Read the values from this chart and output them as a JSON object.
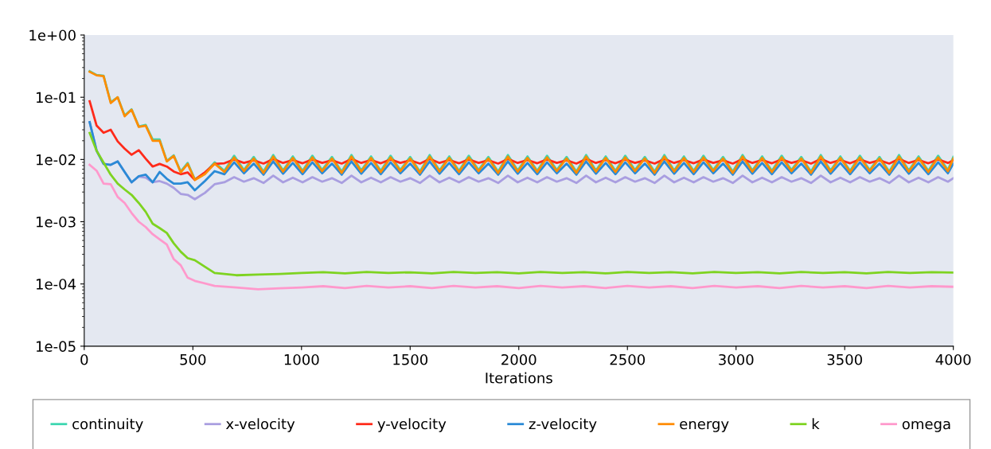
{
  "chart_data": {
    "type": "line",
    "xlabel": "Iterations",
    "log": "y",
    "legend": "bottom",
    "grid": false,
    "marker": "none",
    "line_style": "solid",
    "xlim": [
      0,
      4000
    ],
    "xticks": [
      0,
      500,
      1000,
      1500,
      2000,
      2500,
      3000,
      3500,
      4000
    ],
    "ylim": [
      1e-05,
      1
    ],
    "yticks": [
      {
        "value": 1e-05,
        "label": "1e-05"
      },
      {
        "value": 0.0001,
        "label": "1e-04"
      },
      {
        "value": 0.001,
        "label": "1e-03"
      },
      {
        "value": 0.01,
        "label": "1e-02"
      },
      {
        "value": 0.1,
        "label": "1e-01"
      },
      {
        "value": 1,
        "label": "1e+00"
      }
    ],
    "x": [
      25,
      57,
      89,
      122,
      154,
      186,
      218,
      251,
      283,
      315,
      347,
      380,
      412,
      444,
      476,
      509,
      555,
      600,
      645,
      690,
      735,
      780,
      825,
      870,
      915,
      960,
      1005,
      1050,
      1095,
      1140,
      1185,
      1230,
      1275,
      1320,
      1365,
      1410,
      1455,
      1500,
      1545,
      1590,
      1635,
      1680,
      1725,
      1770,
      1815,
      1860,
      1905,
      1950,
      1995,
      2040,
      2085,
      2130,
      2175,
      2220,
      2265,
      2310,
      2355,
      2400,
      2445,
      2490,
      2535,
      2580,
      2625,
      2670,
      2715,
      2760,
      2805,
      2850,
      2895,
      2940,
      2985,
      3030,
      3075,
      3120,
      3165,
      3210,
      3255,
      3300,
      3345,
      3390,
      3435,
      3480,
      3525,
      3570,
      3615,
      3660,
      3705,
      3750,
      3795,
      3840,
      3885,
      3930,
      3975,
      4000
    ],
    "series": [
      {
        "name": "continuity",
        "color": "#3dd6b0",
        "values": [
          0.262,
          0.228,
          0.222,
          0.083,
          0.1,
          0.051,
          0.064,
          0.034,
          0.036,
          0.021,
          0.021,
          0.0095,
          0.0117,
          0.0064,
          0.0088,
          0.0048,
          0.006,
          0.009,
          0.0066,
          0.0115,
          0.0068,
          0.011,
          0.0064,
          0.0118,
          0.0067,
          0.0112,
          0.0066,
          0.0115,
          0.0068,
          0.011,
          0.0064,
          0.0118,
          0.0067,
          0.0112,
          0.0066,
          0.0115,
          0.0068,
          0.011,
          0.0064,
          0.0118,
          0.0067,
          0.0112,
          0.0066,
          0.0115,
          0.0068,
          0.011,
          0.0064,
          0.0118,
          0.0067,
          0.0112,
          0.0066,
          0.0115,
          0.0068,
          0.011,
          0.0064,
          0.0118,
          0.0067,
          0.0112,
          0.0066,
          0.0115,
          0.0068,
          0.011,
          0.0064,
          0.0118,
          0.0067,
          0.0112,
          0.0066,
          0.0115,
          0.0068,
          0.011,
          0.0064,
          0.0118,
          0.0067,
          0.0112,
          0.0066,
          0.0115,
          0.0068,
          0.011,
          0.0064,
          0.0118,
          0.0067,
          0.0112,
          0.0066,
          0.0115,
          0.0068,
          0.011,
          0.0064,
          0.0118,
          0.0067,
          0.0112,
          0.0066,
          0.0115,
          0.0068,
          0.011
        ]
      },
      {
        "name": "x-velocity",
        "color": "#a99ee0",
        "values": [
          0.0398,
          0.0138,
          0.0085,
          0.0082,
          0.0093,
          0.0063,
          0.0043,
          0.0053,
          0.0051,
          0.0043,
          0.0045,
          0.0041,
          0.0035,
          0.0028,
          0.0027,
          0.0023,
          0.0029,
          0.004,
          0.0043,
          0.0052,
          0.0044,
          0.005,
          0.0042,
          0.0055,
          0.0043,
          0.0051,
          0.0043,
          0.0052,
          0.0044,
          0.005,
          0.0042,
          0.0055,
          0.0043,
          0.0051,
          0.0043,
          0.0052,
          0.0044,
          0.005,
          0.0042,
          0.0055,
          0.0043,
          0.0051,
          0.0043,
          0.0052,
          0.0044,
          0.005,
          0.0042,
          0.0055,
          0.0043,
          0.0051,
          0.0043,
          0.0052,
          0.0044,
          0.005,
          0.0042,
          0.0055,
          0.0043,
          0.0051,
          0.0043,
          0.0052,
          0.0044,
          0.005,
          0.0042,
          0.0055,
          0.0043,
          0.0051,
          0.0043,
          0.0052,
          0.0044,
          0.005,
          0.0042,
          0.0055,
          0.0043,
          0.0051,
          0.0043,
          0.0052,
          0.0044,
          0.005,
          0.0042,
          0.0055,
          0.0043,
          0.0051,
          0.0043,
          0.0052,
          0.0044,
          0.005,
          0.0042,
          0.0055,
          0.0043,
          0.0051,
          0.0043,
          0.0052,
          0.0044,
          0.005
        ]
      },
      {
        "name": "y-velocity",
        "color": "#ff2a1a",
        "values": [
          0.0863,
          0.035,
          0.0269,
          0.03,
          0.0195,
          0.0149,
          0.0119,
          0.0141,
          0.0103,
          0.0077,
          0.0085,
          0.0077,
          0.0064,
          0.0058,
          0.0062,
          0.0047,
          0.0062,
          0.0085,
          0.0087,
          0.01,
          0.0088,
          0.0097,
          0.0086,
          0.0102,
          0.0088,
          0.0098,
          0.0087,
          0.01,
          0.0088,
          0.0097,
          0.0086,
          0.0102,
          0.0088,
          0.0098,
          0.0087,
          0.01,
          0.0088,
          0.0097,
          0.0086,
          0.0102,
          0.0088,
          0.0098,
          0.0087,
          0.01,
          0.0088,
          0.0097,
          0.0086,
          0.0102,
          0.0088,
          0.0098,
          0.0087,
          0.01,
          0.0088,
          0.0097,
          0.0086,
          0.0102,
          0.0088,
          0.0098,
          0.0087,
          0.01,
          0.0088,
          0.0097,
          0.0086,
          0.0102,
          0.0088,
          0.0098,
          0.0087,
          0.01,
          0.0088,
          0.0097,
          0.0086,
          0.0102,
          0.0088,
          0.0098,
          0.0087,
          0.01,
          0.0088,
          0.0097,
          0.0086,
          0.0102,
          0.0088,
          0.0098,
          0.0087,
          0.01,
          0.0088,
          0.0097,
          0.0086,
          0.0102,
          0.0088,
          0.0098,
          0.0087,
          0.01,
          0.0088,
          0.0097
        ]
      },
      {
        "name": "z-velocity",
        "color": "#2a8ad6",
        "values": [
          0.0398,
          0.0138,
          0.0085,
          0.0082,
          0.0093,
          0.0063,
          0.0043,
          0.0054,
          0.0057,
          0.0043,
          0.0063,
          0.0049,
          0.0041,
          0.0041,
          0.0043,
          0.0032,
          0.0045,
          0.0065,
          0.0058,
          0.009,
          0.006,
          0.0086,
          0.0057,
          0.0093,
          0.0059,
          0.0088,
          0.0058,
          0.009,
          0.006,
          0.0086,
          0.0057,
          0.0093,
          0.0059,
          0.0088,
          0.0058,
          0.009,
          0.006,
          0.0086,
          0.0057,
          0.0093,
          0.0059,
          0.0088,
          0.0058,
          0.009,
          0.006,
          0.0086,
          0.0057,
          0.0093,
          0.0059,
          0.0088,
          0.0058,
          0.009,
          0.006,
          0.0086,
          0.0057,
          0.0093,
          0.0059,
          0.0088,
          0.0058,
          0.009,
          0.006,
          0.0086,
          0.0057,
          0.0093,
          0.0059,
          0.0088,
          0.0058,
          0.009,
          0.006,
          0.0086,
          0.0057,
          0.0093,
          0.0059,
          0.0088,
          0.0058,
          0.009,
          0.006,
          0.0086,
          0.0057,
          0.0093,
          0.0059,
          0.0088,
          0.0058,
          0.009,
          0.006,
          0.0086,
          0.0057,
          0.0093,
          0.0059,
          0.0088,
          0.0058,
          0.009,
          0.006,
          0.0086
        ]
      },
      {
        "name": "energy",
        "color": "#ff8c00",
        "values": [
          0.257,
          0.225,
          0.219,
          0.0806,
          0.1,
          0.0494,
          0.063,
          0.0334,
          0.035,
          0.02,
          0.02,
          0.0093,
          0.0114,
          0.0062,
          0.0085,
          0.0047,
          0.0058,
          0.0086,
          0.0063,
          0.0108,
          0.0065,
          0.0104,
          0.0061,
          0.0111,
          0.0064,
          0.0106,
          0.0063,
          0.0108,
          0.0065,
          0.0104,
          0.0061,
          0.0111,
          0.0064,
          0.0106,
          0.0063,
          0.0108,
          0.0065,
          0.0104,
          0.0061,
          0.0111,
          0.0064,
          0.0106,
          0.0063,
          0.0108,
          0.0065,
          0.0104,
          0.0061,
          0.0111,
          0.0064,
          0.0106,
          0.0063,
          0.0108,
          0.0065,
          0.0104,
          0.0061,
          0.0111,
          0.0064,
          0.0106,
          0.0063,
          0.0108,
          0.0065,
          0.0104,
          0.0061,
          0.0111,
          0.0064,
          0.0106,
          0.0063,
          0.0108,
          0.0065,
          0.0104,
          0.0061,
          0.0111,
          0.0064,
          0.0106,
          0.0063,
          0.0108,
          0.0065,
          0.0104,
          0.0061,
          0.0111,
          0.0064,
          0.0106,
          0.0063,
          0.0108,
          0.0065,
          0.0104,
          0.0061,
          0.0111,
          0.0064,
          0.0106,
          0.0063,
          0.0108,
          0.0065,
          0.0104
        ]
      },
      {
        "name": "k",
        "color": "#7ed321",
        "x": [
          25,
          57,
          89,
          122,
          154,
          186,
          218,
          251,
          283,
          315,
          347,
          380,
          412,
          444,
          476,
          509,
          600,
          700,
          800,
          900,
          1000,
          1100,
          1200,
          1300,
          1400,
          1500,
          1600,
          1700,
          1800,
          1900,
          2000,
          2100,
          2200,
          2300,
          2400,
          2500,
          2600,
          2700,
          2800,
          2900,
          3000,
          3100,
          3200,
          3300,
          3400,
          3500,
          3600,
          3700,
          3800,
          3900,
          4000
        ],
        "values": [
          0.0267,
          0.0138,
          0.0089,
          0.0057,
          0.0041,
          0.0033,
          0.0027,
          0.002,
          0.00144,
          0.00093,
          0.00079,
          0.00066,
          0.00045,
          0.00033,
          0.00026,
          0.00024,
          0.00015,
          0.000138,
          0.000142,
          0.000145,
          0.00015,
          0.000155,
          0.000148,
          0.000156,
          0.00015,
          0.000154,
          0.000148,
          0.000156,
          0.00015,
          0.000155,
          0.000148,
          0.000156,
          0.00015,
          0.000155,
          0.000148,
          0.000156,
          0.00015,
          0.000155,
          0.000148,
          0.000156,
          0.00015,
          0.000155,
          0.000148,
          0.000156,
          0.00015,
          0.000155,
          0.000148,
          0.000156,
          0.00015,
          0.000155,
          0.000152
        ]
      },
      {
        "name": "omega",
        "color": "#ff99cc",
        "x": [
          25,
          57,
          89,
          122,
          154,
          186,
          218,
          251,
          283,
          315,
          347,
          380,
          412,
          444,
          476,
          509,
          600,
          700,
          800,
          900,
          1000,
          1100,
          1200,
          1300,
          1400,
          1500,
          1600,
          1700,
          1800,
          1900,
          2000,
          2100,
          2200,
          2300,
          2400,
          2500,
          2600,
          2700,
          2800,
          2900,
          3000,
          3100,
          3200,
          3300,
          3400,
          3500,
          3600,
          3700,
          3800,
          3900,
          4000
        ],
        "values": [
          0.0082,
          0.0066,
          0.0041,
          0.004,
          0.0025,
          0.002,
          0.00138,
          0.001,
          0.00082,
          0.00063,
          0.00052,
          0.00043,
          0.00025,
          0.0002,
          0.000126,
          0.000112,
          9.3e-05,
          8.8e-05,
          8.2e-05,
          8.5e-05,
          8.8e-05,
          9.2e-05,
          8.6e-05,
          9.3e-05,
          8.8e-05,
          9.2e-05,
          8.6e-05,
          9.3e-05,
          8.8e-05,
          9.2e-05,
          8.6e-05,
          9.3e-05,
          8.8e-05,
          9.2e-05,
          8.6e-05,
          9.3e-05,
          8.8e-05,
          9.2e-05,
          8.6e-05,
          9.3e-05,
          8.8e-05,
          9.2e-05,
          8.6e-05,
          9.3e-05,
          8.8e-05,
          9.2e-05,
          8.6e-05,
          9.3e-05,
          8.8e-05,
          9.2e-05,
          9e-05
        ]
      }
    ]
  }
}
